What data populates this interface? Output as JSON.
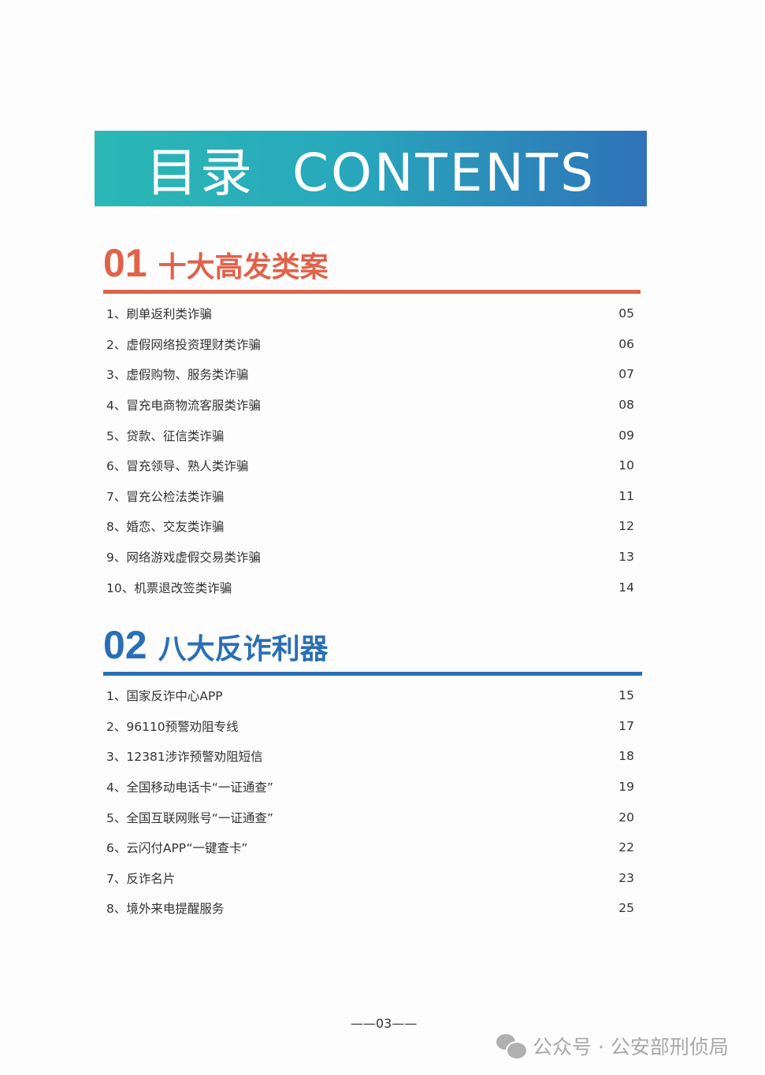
{
  "banner": {
    "title": "目录  CONTENTS",
    "gradient": [
      "#2bb8b5",
      "#2f72b8"
    ]
  },
  "sections": [
    {
      "number": "01",
      "title": "十大高发类案",
      "color": "#e0624a",
      "items": [
        {
          "label": "1、刷单返利类诈骗",
          "page": "05"
        },
        {
          "label": "2、虚假网络投资理财类诈骗",
          "page": "06"
        },
        {
          "label": "3、虚假购物、服务类诈骗",
          "page": "07"
        },
        {
          "label": "4、冒充电商物流客服类诈骗",
          "page": "08"
        },
        {
          "label": "5、贷款、征信类诈骗",
          "page": "09"
        },
        {
          "label": "6、冒充领导、熟人类诈骗",
          "page": "10"
        },
        {
          "label": "7、冒充公检法类诈骗",
          "page": "11"
        },
        {
          "label": "8、婚恋、交友类诈骗",
          "page": "12"
        },
        {
          "label": "9、网络游戏虚假交易类诈骗",
          "page": "13"
        },
        {
          "label": "10、机票退改签类诈骗",
          "page": "14"
        }
      ]
    },
    {
      "number": "02",
      "title": "八大反诈利器",
      "color": "#2a6fb5",
      "items": [
        {
          "label": "1、国家反诈中心APP",
          "page": "15"
        },
        {
          "label": "2、96110预警劝阻专线",
          "page": "17"
        },
        {
          "label": "3、12381涉诈预警劝阻短信",
          "page": "18"
        },
        {
          "label": "4、全国移动电话卡“一证通查”",
          "page": "19"
        },
        {
          "label": "5、全国互联网账号“一证通查”",
          "page": "20"
        },
        {
          "label": "6、云闪付APP“一键查卡”",
          "page": "22"
        },
        {
          "label": "7、反诈名片",
          "page": "23"
        },
        {
          "label": "8、境外来电提醒服务",
          "page": "25"
        }
      ]
    }
  ],
  "footer": {
    "page_number": "——03——"
  },
  "watermark": {
    "text": "公众号 · 公安部刑侦局",
    "icon": "wechat-icon"
  }
}
